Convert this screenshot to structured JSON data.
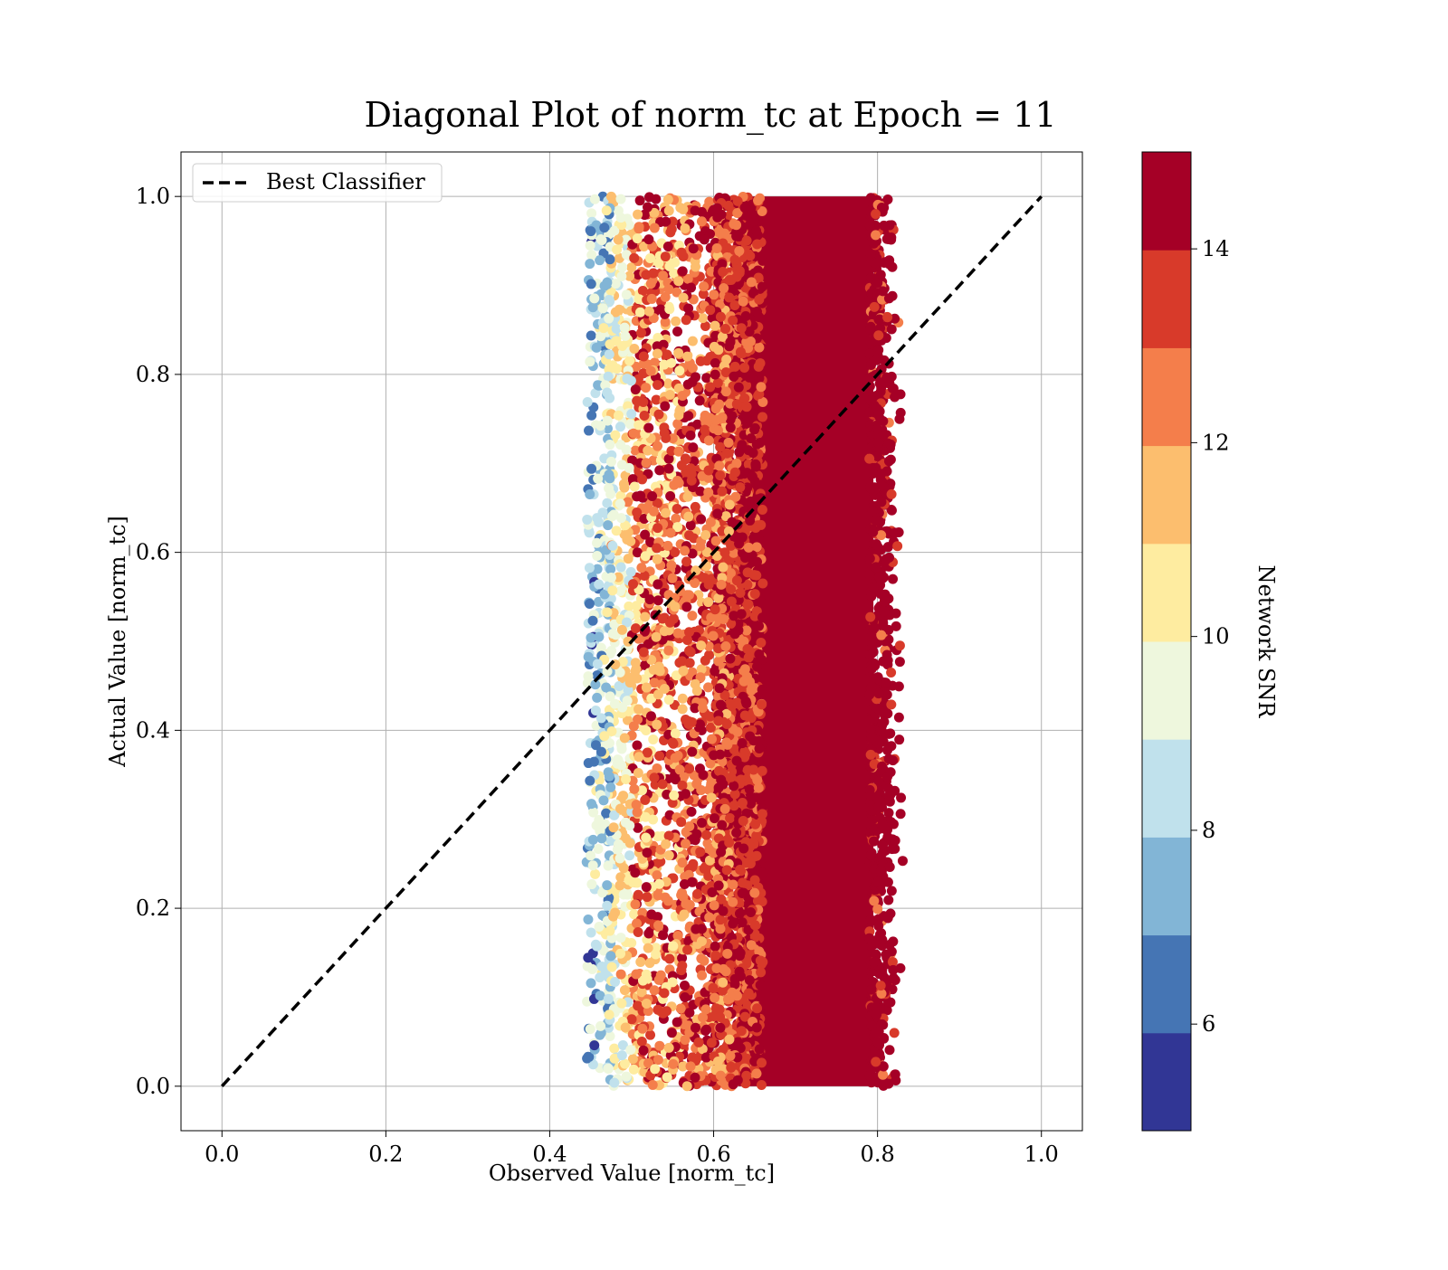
{
  "chart_data": {
    "type": "scatter",
    "title": "Diagonal Plot of norm_tc at Epoch = 11",
    "xlabel": "Observed Value [norm_tc]",
    "ylabel": "Actual Value [norm_tc]",
    "xlim": [
      -0.05,
      1.05
    ],
    "ylim": [
      -0.05,
      1.05
    ],
    "x_ticks": [
      "0.0",
      "0.2",
      "0.4",
      "0.6",
      "0.8",
      "1.0"
    ],
    "y_ticks": [
      "0.0",
      "0.2",
      "0.4",
      "0.6",
      "0.8",
      "1.0"
    ],
    "grid": true,
    "legend": {
      "placement": "upper-left",
      "entries": [
        {
          "label": "Best Classifier",
          "style": "dashed",
          "color": "#000000"
        }
      ]
    },
    "reference_line": {
      "name": "Best Classifier",
      "x": [
        0.0,
        1.0
      ],
      "y": [
        0.0,
        1.0
      ],
      "style": "dashed",
      "color": "#000000"
    },
    "scatter_extent": {
      "x_range": [
        0.43,
        0.87
      ],
      "y_range": [
        0.0,
        1.0
      ],
      "note_color_by": "Network SNR"
    },
    "snr_gradient": [
      {
        "x_from": 0.43,
        "x_to": 0.47,
        "snr_level": 7.5
      },
      {
        "x_from": 0.47,
        "x_to": 0.5,
        "snr_level": 10.0
      },
      {
        "x_from": 0.5,
        "x_to": 0.56,
        "snr_level": 11.5
      },
      {
        "x_from": 0.56,
        "x_to": 0.62,
        "snr_level": 13.0
      },
      {
        "x_from": 0.62,
        "x_to": 0.79,
        "snr_level": 14.5
      },
      {
        "x_from": 0.79,
        "x_to": 0.87,
        "snr_level": 14.0
      }
    ],
    "colorbar": {
      "label": "Network SNR",
      "range": [
        4.9,
        15.0
      ],
      "ticks": [
        "6",
        "8",
        "10",
        "12",
        "14"
      ],
      "tick_values": [
        6,
        8,
        10,
        12,
        14
      ],
      "boundaries": [
        4.9,
        5.91,
        6.92,
        7.93,
        8.94,
        9.95,
        10.96,
        11.97,
        12.98,
        13.99,
        15.0
      ],
      "colors": [
        "#313695",
        "#4575b4",
        "#82b5d6",
        "#c0e1ec",
        "#eef7dd",
        "#feeca0",
        "#fcbe6e",
        "#f47e4b",
        "#d83a2a",
        "#a50026"
      ]
    }
  }
}
